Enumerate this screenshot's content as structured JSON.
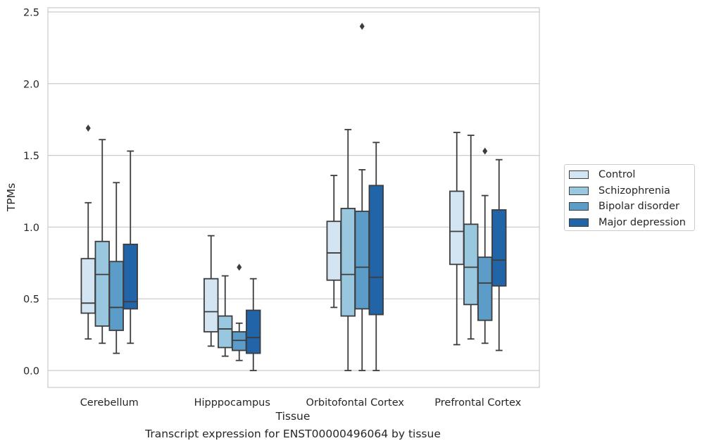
{
  "chart_data": {
    "type": "box",
    "xlabel": "Tissue",
    "ylabel": "TPMs",
    "ylim": [
      -0.115,
      2.535
    ],
    "yticks": [
      0.0,
      0.5,
      1.0,
      1.5,
      2.0,
      2.5
    ],
    "ytick_labels": [
      "0.0",
      "0.5",
      "1.0",
      "1.5",
      "2.0",
      "2.5"
    ],
    "grid": true,
    "legend_position": "right",
    "categories": [
      "Cerebellum",
      "Hipppocampus",
      "Orbitofontal Cortex",
      "Prefrontal Cortex"
    ],
    "series": [
      {
        "name": "Control",
        "color": "#d3e4f3",
        "boxes": [
          {
            "whisker_low": 0.22,
            "q1": 0.4,
            "median": 0.47,
            "q3": 0.78,
            "whisker_high": 1.17,
            "outliers": [
              1.69
            ]
          },
          {
            "whisker_low": 0.17,
            "q1": 0.27,
            "median": 0.41,
            "q3": 0.64,
            "whisker_high": 0.94,
            "outliers": []
          },
          {
            "whisker_low": 0.44,
            "q1": 0.63,
            "median": 0.82,
            "q3": 1.04,
            "whisker_high": 1.36,
            "outliers": []
          },
          {
            "whisker_low": 0.18,
            "q1": 0.74,
            "median": 0.97,
            "q3": 1.25,
            "whisker_high": 1.66,
            "outliers": []
          }
        ]
      },
      {
        "name": "Schizophrenia",
        "color": "#9ac7e0",
        "boxes": [
          {
            "whisker_low": 0.19,
            "q1": 0.31,
            "median": 0.67,
            "q3": 0.9,
            "whisker_high": 1.61,
            "outliers": []
          },
          {
            "whisker_low": 0.1,
            "q1": 0.16,
            "median": 0.29,
            "q3": 0.38,
            "whisker_high": 0.66,
            "outliers": []
          },
          {
            "whisker_low": 0.0,
            "q1": 0.38,
            "median": 0.67,
            "q3": 1.13,
            "whisker_high": 1.68,
            "outliers": []
          },
          {
            "whisker_low": 0.22,
            "q1": 0.46,
            "median": 0.72,
            "q3": 1.02,
            "whisker_high": 1.64,
            "outliers": []
          }
        ]
      },
      {
        "name": "Bipolar disorder",
        "color": "#5b9cc9",
        "boxes": [
          {
            "whisker_low": 0.12,
            "q1": 0.28,
            "median": 0.44,
            "q3": 0.76,
            "whisker_high": 1.31,
            "outliers": []
          },
          {
            "whisker_low": 0.07,
            "q1": 0.14,
            "median": 0.21,
            "q3": 0.27,
            "whisker_high": 0.33,
            "outliers": [
              0.72
            ]
          },
          {
            "whisker_low": 0.0,
            "q1": 0.43,
            "median": 0.72,
            "q3": 1.11,
            "whisker_high": 1.4,
            "outliers": [
              2.4
            ]
          },
          {
            "whisker_low": 0.19,
            "q1": 0.35,
            "median": 0.61,
            "q3": 0.79,
            "whisker_high": 1.22,
            "outliers": [
              1.53
            ]
          }
        ]
      },
      {
        "name": "Major depression",
        "color": "#2264a8",
        "boxes": [
          {
            "whisker_low": 0.19,
            "q1": 0.43,
            "median": 0.48,
            "q3": 0.88,
            "whisker_high": 1.53,
            "outliers": []
          },
          {
            "whisker_low": 0.0,
            "q1": 0.12,
            "median": 0.23,
            "q3": 0.42,
            "whisker_high": 0.64,
            "outliers": []
          },
          {
            "whisker_low": 0.0,
            "q1": 0.39,
            "median": 0.65,
            "q3": 1.29,
            "whisker_high": 1.59,
            "outliers": []
          },
          {
            "whisker_low": 0.14,
            "q1": 0.59,
            "median": 0.77,
            "q3": 1.12,
            "whisker_high": 1.47,
            "outliers": []
          }
        ]
      }
    ]
  },
  "caption": "Transcript expression for ENST00000496064 by tissue",
  "colors": {
    "grid": "#cccccc",
    "line": "#3d3d3d",
    "text": "#262626"
  }
}
